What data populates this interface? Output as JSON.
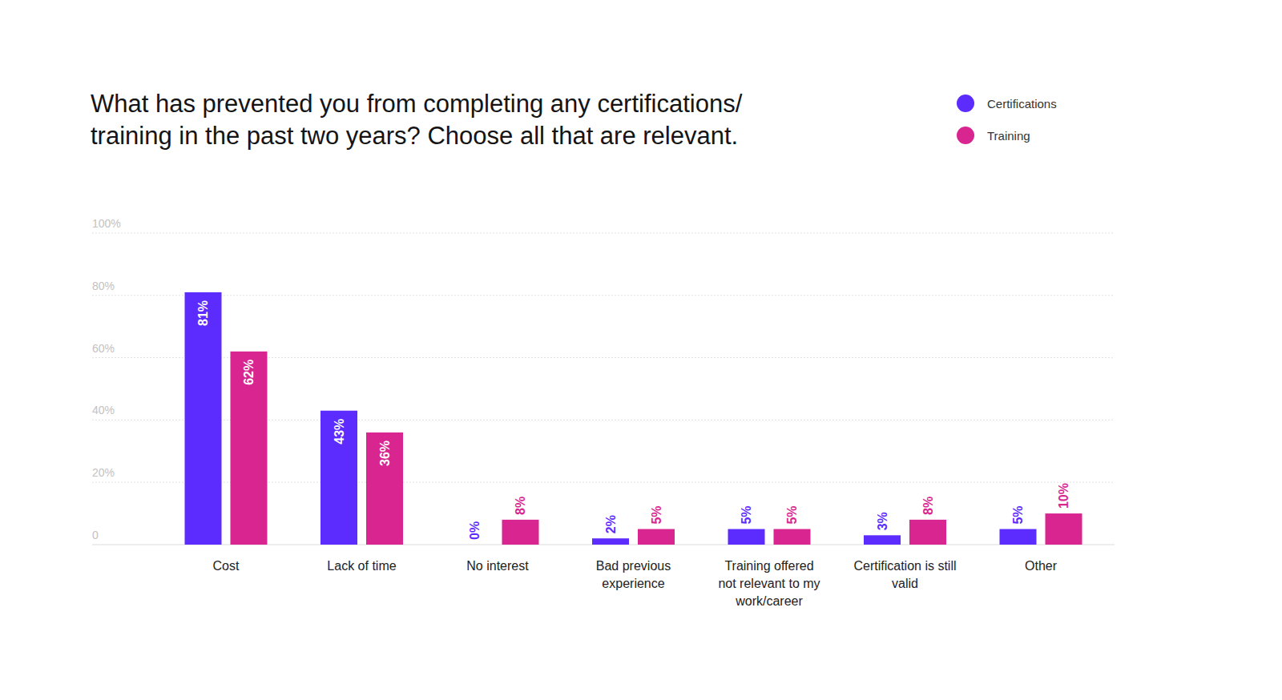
{
  "chart_data": {
    "type": "bar",
    "title": "What has prevented you from completing any certifications/ training in the past two years? Choose all that are relevant.",
    "categories": [
      "Cost",
      "Lack of time",
      "No interest",
      "Bad previous experience",
      "Training offered not relevant to my work/career",
      "Certification is still valid",
      "Other"
    ],
    "series": [
      {
        "name": "Certifications",
        "color": "#5c2cff",
        "values": [
          81,
          43,
          0,
          2,
          5,
          3,
          5
        ],
        "value_labels": [
          "81%",
          "43%",
          "0%",
          "2%",
          "5%",
          "3%",
          "5%"
        ]
      },
      {
        "name": "Training",
        "color": "#d82590",
        "values": [
          62,
          36,
          8,
          5,
          5,
          8,
          10
        ],
        "value_labels": [
          "62%",
          "36%",
          "8%",
          "5%",
          "5%",
          "8%",
          "10%"
        ]
      }
    ],
    "ylim": [
      0,
      100
    ],
    "yticks": [
      0,
      {
        "value": 20,
        "label": "20%"
      },
      {
        "value": 40,
        "label": "40%"
      },
      {
        "value": 60,
        "label": "60%"
      },
      {
        "value": 80,
        "label": "80%"
      },
      {
        "value": 100,
        "label": "100%"
      }
    ],
    "grid": true,
    "legend": "top-right",
    "data_labels": true
  }
}
